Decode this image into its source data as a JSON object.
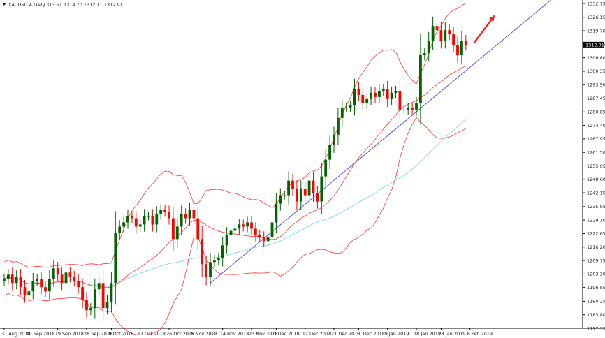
{
  "chart_data": {
    "type": "candlestick",
    "symbol_line": {
      "symbol": "XAUUSD.A,Daily",
      "ohlc": "1313.51 1314.70 1312.11 1312.91"
    },
    "current_price": "1312.91",
    "y_axis_labels": [
      "1332.75",
      "1326.15",
      "1319.70",
      "1313.25",
      "1306.80",
      "1300.35",
      "1293.90",
      "1287.45",
      "1280.85",
      "1274.40",
      "1267.95",
      "1261.50",
      "1255.05",
      "1248.60",
      "1242.15",
      "1235.55",
      "1229.10",
      "1222.65",
      "1216.20",
      "1209.75",
      "1203.30",
      "1196.85",
      "1190.25",
      "1183.80",
      "1177.35"
    ],
    "ylim": [
      1177.35,
      1332.75
    ],
    "x_axis_labels": [
      {
        "label": "31 Aug 2018",
        "index": 0
      },
      {
        "label": "10 Sep 2018",
        "index": 6
      },
      {
        "label": "19 Sep 2018",
        "index": 13
      },
      {
        "label": "28 Sep 2018",
        "index": 20
      },
      {
        "label": "8 Oct 2018",
        "index": 26
      },
      {
        "label": "17 Oct 2018",
        "index": 33
      },
      {
        "label": "26 Oct 2018",
        "index": 40
      },
      {
        "label": "5 Nov 2018",
        "index": 46
      },
      {
        "label": "14 Nov 2018",
        "index": 53
      },
      {
        "label": "23 Nov 2018",
        "index": 60
      },
      {
        "label": "3 Dec 2018",
        "index": 66
      },
      {
        "label": "12 Dec 2018",
        "index": 73
      },
      {
        "label": "21 Dec 2018",
        "index": 80
      },
      {
        "label": "31 Dec 2018",
        "index": 86
      },
      {
        "label": "9 Jan 2019",
        "index": 93
      },
      {
        "label": "18 Jan 2019",
        "index": 100
      },
      {
        "label": "28 Jan 2019",
        "index": 106
      },
      {
        "label": "6 Feb 2019",
        "index": 113
      }
    ],
    "closes": [
      1201,
      1203,
      1199,
      1202,
      1197,
      1193,
      1195,
      1200,
      1201,
      1197,
      1195,
      1201,
      1206,
      1203,
      1199,
      1204,
      1202,
      1200,
      1197,
      1191,
      1186,
      1187,
      1196,
      1199,
      1187,
      1190,
      1199,
      1223,
      1226,
      1228,
      1231,
      1230,
      1226,
      1227,
      1231,
      1231,
      1227,
      1232,
      1234,
      1233,
      1230,
      1220,
      1226,
      1232,
      1230,
      1234,
      1230,
      1220,
      1208,
      1202,
      1209,
      1210,
      1211,
      1217,
      1222,
      1224,
      1225,
      1227,
      1226,
      1228,
      1225,
      1222,
      1221,
      1219,
      1221,
      1228,
      1237,
      1241,
      1241,
      1248,
      1244,
      1238,
      1244,
      1241,
      1248,
      1242,
      1238,
      1250,
      1258,
      1265,
      1270,
      1278,
      1283,
      1283,
      1284,
      1292,
      1289,
      1285,
      1287,
      1290,
      1288,
      1291,
      1292,
      1287,
      1290,
      1291,
      1282,
      1282,
      1283,
      1282,
      1285,
      1308,
      1309,
      1315,
      1322,
      1320,
      1315,
      1320,
      1318,
      1313,
      1308,
      1315,
      1313
    ],
    "bollinger_color": "#ff3333",
    "ma_color": "#88d8e8",
    "trendline_color": "#5555dd",
    "up_color": "#006400",
    "down_color": "#ff0000",
    "arrow_color": "#ee2222"
  }
}
